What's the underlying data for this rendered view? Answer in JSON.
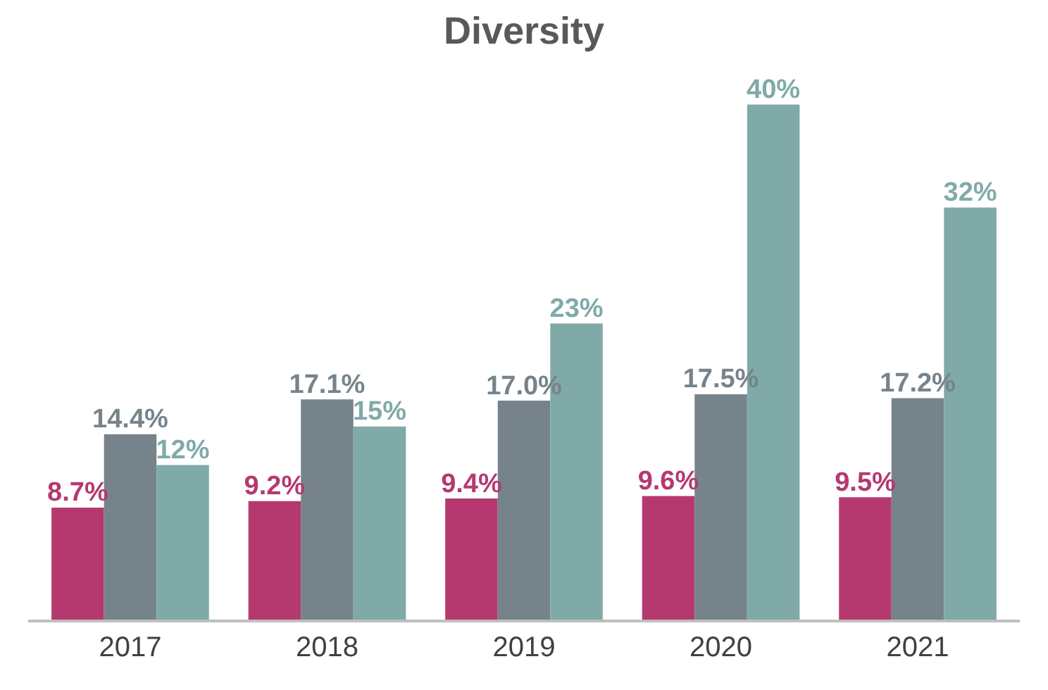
{
  "chart_data": {
    "type": "bar",
    "title": "Diversity",
    "categories": [
      "2017",
      "2018",
      "2019",
      "2020",
      "2021"
    ],
    "series": [
      {
        "color": "#b5396f",
        "values": [
          8.7,
          9.2,
          9.4,
          9.6,
          9.5
        ],
        "value_labels": [
          "8.7%",
          "9.2%",
          "9.4%",
          "9.6%",
          "9.5%"
        ]
      },
      {
        "color": "#77838a",
        "values": [
          14.4,
          17.1,
          17.0,
          17.5,
          17.2
        ],
        "value_labels": [
          "14.4%",
          "17.1%",
          "17.0%",
          "17.5%",
          "17.2%"
        ]
      },
      {
        "color": "#80aaa8",
        "values": [
          12,
          15,
          23,
          40,
          32
        ],
        "value_labels": [
          "12%",
          "15%",
          "23%",
          "40%",
          "32%"
        ]
      }
    ],
    "tick_labels": "x",
    "legend": false
  }
}
